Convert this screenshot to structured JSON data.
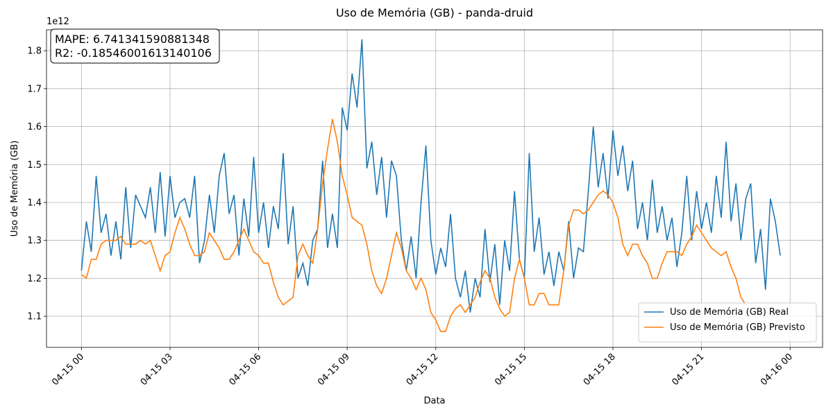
{
  "chart_data": {
    "type": "line",
    "title": "Uso de Memória (GB) - panda-druid",
    "xlabel": "Data",
    "ylabel": "Uso de Memória (GB)",
    "y_offset_label": "1e12",
    "annotations": [
      "MAPE: 6.741341590881348",
      "R2: -0.18546001613140106"
    ],
    "legend": "lower right",
    "grid": true,
    "xlim": [
      "04-14 22:49",
      "04-16 01:06"
    ],
    "ylim": [
      1018000000000.0,
      1855000000000.0
    ],
    "xticks": [
      {
        "value": "04-15 00:00",
        "label": "04-15 00"
      },
      {
        "value": "04-15 03:00",
        "label": "04-15 03"
      },
      {
        "value": "04-15 06:00",
        "label": "04-15 06"
      },
      {
        "value": "04-15 09:00",
        "label": "04-15 09"
      },
      {
        "value": "04-15 12:00",
        "label": "04-15 12"
      },
      {
        "value": "04-15 15:00",
        "label": "04-15 15"
      },
      {
        "value": "04-15 18:00",
        "label": "04-15 18"
      },
      {
        "value": "04-15 21:00",
        "label": "04-15 21"
      },
      {
        "value": "04-16 00:00",
        "label": "04-16 00"
      }
    ],
    "yticks": [
      {
        "value": 1100000000000.0,
        "label": "1.1"
      },
      {
        "value": 1200000000000.0,
        "label": "1.2"
      },
      {
        "value": 1300000000000.0,
        "label": "1.3"
      },
      {
        "value": 1400000000000.0,
        "label": "1.4"
      },
      {
        "value": 1500000000000.0,
        "label": "1.5"
      },
      {
        "value": 1600000000000.0,
        "label": "1.6"
      },
      {
        "value": 1700000000000.0,
        "label": "1.7"
      },
      {
        "value": 1800000000000.0,
        "label": "1.8"
      }
    ],
    "x": [
      "04-15 00:00",
      "04-15 00:10",
      "04-15 00:20",
      "04-15 00:30",
      "04-15 00:40",
      "04-15 00:50",
      "04-15 01:00",
      "04-15 01:10",
      "04-15 01:20",
      "04-15 01:30",
      "04-15 01:40",
      "04-15 01:50",
      "04-15 02:00",
      "04-15 02:10",
      "04-15 02:20",
      "04-15 02:30",
      "04-15 02:40",
      "04-15 02:50",
      "04-15 03:00",
      "04-15 03:10",
      "04-15 03:20",
      "04-15 03:30",
      "04-15 03:40",
      "04-15 03:50",
      "04-15 04:00",
      "04-15 04:10",
      "04-15 04:20",
      "04-15 04:30",
      "04-15 04:40",
      "04-15 04:50",
      "04-15 05:00",
      "04-15 05:10",
      "04-15 05:20",
      "04-15 05:30",
      "04-15 05:40",
      "04-15 05:50",
      "04-15 06:00",
      "04-15 06:10",
      "04-15 06:20",
      "04-15 06:30",
      "04-15 06:40",
      "04-15 06:50",
      "04-15 07:00",
      "04-15 07:10",
      "04-15 07:20",
      "04-15 07:30",
      "04-15 07:40",
      "04-15 07:50",
      "04-15 08:00",
      "04-15 08:10",
      "04-15 08:20",
      "04-15 08:30",
      "04-15 08:40",
      "04-15 08:50",
      "04-15 09:00",
      "04-15 09:10",
      "04-15 09:20",
      "04-15 09:30",
      "04-15 09:40",
      "04-15 09:50",
      "04-15 10:00",
      "04-15 10:10",
      "04-15 10:20",
      "04-15 10:30",
      "04-15 10:40",
      "04-15 10:50",
      "04-15 11:00",
      "04-15 11:10",
      "04-15 11:20",
      "04-15 11:30",
      "04-15 11:40",
      "04-15 11:50",
      "04-15 12:00",
      "04-15 12:10",
      "04-15 12:20",
      "04-15 12:30",
      "04-15 12:40",
      "04-15 12:50",
      "04-15 13:00",
      "04-15 13:10",
      "04-15 13:20",
      "04-15 13:30",
      "04-15 13:40",
      "04-15 13:50",
      "04-15 14:00",
      "04-15 14:10",
      "04-15 14:20",
      "04-15 14:30",
      "04-15 14:40",
      "04-15 14:50",
      "04-15 15:00",
      "04-15 15:10",
      "04-15 15:20",
      "04-15 15:30",
      "04-15 15:40",
      "04-15 15:50",
      "04-15 16:00",
      "04-15 16:10",
      "04-15 16:20",
      "04-15 16:30",
      "04-15 16:40",
      "04-15 16:50",
      "04-15 17:00",
      "04-15 17:10",
      "04-15 17:20",
      "04-15 17:30",
      "04-15 17:40",
      "04-15 17:50",
      "04-15 18:00",
      "04-15 18:10",
      "04-15 18:20",
      "04-15 18:30",
      "04-15 18:40",
      "04-15 18:50",
      "04-15 19:00",
      "04-15 19:10",
      "04-15 19:20",
      "04-15 19:30",
      "04-15 19:40",
      "04-15 19:50",
      "04-15 20:00",
      "04-15 20:10",
      "04-15 20:20",
      "04-15 20:30",
      "04-15 20:40",
      "04-15 20:50",
      "04-15 21:00",
      "04-15 21:10",
      "04-15 21:20",
      "04-15 21:30",
      "04-15 21:40",
      "04-15 21:50",
      "04-15 22:00",
      "04-15 22:10",
      "04-15 22:20",
      "04-15 22:30",
      "04-15 22:40",
      "04-15 22:50",
      "04-15 23:00",
      "04-15 23:10",
      "04-15 23:20",
      "04-15 23:30",
      "04-15 23:40"
    ],
    "series": [
      {
        "name": "Uso de Memória (GB) Real",
        "color": "#1f77b4",
        "values": [
          1220000000000.0,
          1350000000000.0,
          1270000000000.0,
          1470000000000.0,
          1320000000000.0,
          1370000000000.0,
          1260000000000.0,
          1350000000000.0,
          1250000000000.0,
          1440000000000.0,
          1280000000000.0,
          1420000000000.0,
          1390000000000.0,
          1360000000000.0,
          1440000000000.0,
          1320000000000.0,
          1480000000000.0,
          1310000000000.0,
          1470000000000.0,
          1360000000000.0,
          1400000000000.0,
          1410000000000.0,
          1360000000000.0,
          1470000000000.0,
          1240000000000.0,
          1300000000000.0,
          1420000000000.0,
          1320000000000.0,
          1470000000000.0,
          1530000000000.0,
          1370000000000.0,
          1420000000000.0,
          1260000000000.0,
          1410000000000.0,
          1310000000000.0,
          1520000000000.0,
          1320000000000.0,
          1400000000000.0,
          1280000000000.0,
          1390000000000.0,
          1330000000000.0,
          1530000000000.0,
          1290000000000.0,
          1390000000000.0,
          1200000000000.0,
          1240000000000.0,
          1180000000000.0,
          1300000000000.0,
          1330000000000.0,
          1510000000000.0,
          1280000000000.0,
          1370000000000.0,
          1280000000000.0,
          1650000000000.0,
          1590000000000.0,
          1740000000000.0,
          1650000000000.0,
          1830000000000.0,
          1490000000000.0,
          1560000000000.0,
          1420000000000.0,
          1520000000000.0,
          1360000000000.0,
          1510000000000.0,
          1470000000000.0,
          1300000000000.0,
          1220000000000.0,
          1310000000000.0,
          1200000000000.0,
          1400000000000.0,
          1550000000000.0,
          1300000000000.0,
          1210000000000.0,
          1280000000000.0,
          1230000000000.0,
          1370000000000.0,
          1200000000000.0,
          1150000000000.0,
          1220000000000.0,
          1110000000000.0,
          1200000000000.0,
          1150000000000.0,
          1330000000000.0,
          1190000000000.0,
          1290000000000.0,
          1130000000000.0,
          1300000000000.0,
          1220000000000.0,
          1430000000000.0,
          1250000000000.0,
          1200000000000.0,
          1530000000000.0,
          1270000000000.0,
          1360000000000.0,
          1210000000000.0,
          1270000000000.0,
          1180000000000.0,
          1270000000000.0,
          1220000000000.0,
          1350000000000.0,
          1200000000000.0,
          1280000000000.0,
          1270000000000.0,
          1430000000000.0,
          1600000000000.0,
          1440000000000.0,
          1530000000000.0,
          1410000000000.0,
          1590000000000.0,
          1470000000000.0,
          1550000000000.0,
          1430000000000.0,
          1510000000000.0,
          1330000000000.0,
          1400000000000.0,
          1300000000000.0,
          1460000000000.0,
          1320000000000.0,
          1390000000000.0,
          1300000000000.0,
          1360000000000.0,
          1230000000000.0,
          1320000000000.0,
          1470000000000.0,
          1300000000000.0,
          1430000000000.0,
          1330000000000.0,
          1400000000000.0,
          1320000000000.0,
          1470000000000.0,
          1360000000000.0,
          1560000000000.0,
          1350000000000.0,
          1450000000000.0,
          1300000000000.0,
          1410000000000.0,
          1450000000000.0,
          1240000000000.0,
          1330000000000.0,
          1170000000000.0,
          1410000000000.0,
          1350000000000.0,
          1260000000000.0
        ]
      },
      {
        "name": "Uso de Memória (GB) Previsto",
        "color": "#ff7f0e",
        "values": [
          1210000000000.0,
          1200000000000.0,
          1250000000000.0,
          1250000000000.0,
          1290000000000.0,
          1300000000000.0,
          1300000000000.0,
          1300000000000.0,
          1310000000000.0,
          1290000000000.0,
          1290000000000.0,
          1290000000000.0,
          1300000000000.0,
          1290000000000.0,
          1300000000000.0,
          1260000000000.0,
          1220000000000.0,
          1260000000000.0,
          1270000000000.0,
          1320000000000.0,
          1360000000000.0,
          1330000000000.0,
          1290000000000.0,
          1260000000000.0,
          1260000000000.0,
          1270000000000.0,
          1320000000000.0,
          1300000000000.0,
          1280000000000.0,
          1250000000000.0,
          1250000000000.0,
          1270000000000.0,
          1300000000000.0,
          1330000000000.0,
          1300000000000.0,
          1270000000000.0,
          1260000000000.0,
          1240000000000.0,
          1240000000000.0,
          1190000000000.0,
          1150000000000.0,
          1130000000000.0,
          1140000000000.0,
          1150000000000.0,
          1260000000000.0,
          1290000000000.0,
          1260000000000.0,
          1240000000000.0,
          1330000000000.0,
          1450000000000.0,
          1540000000000.0,
          1620000000000.0,
          1560000000000.0,
          1470000000000.0,
          1420000000000.0,
          1360000000000.0,
          1350000000000.0,
          1340000000000.0,
          1290000000000.0,
          1220000000000.0,
          1180000000000.0,
          1160000000000.0,
          1200000000000.0,
          1260000000000.0,
          1320000000000.0,
          1280000000000.0,
          1220000000000.0,
          1200000000000.0,
          1170000000000.0,
          1200000000000.0,
          1170000000000.0,
          1110000000000.0,
          1090000000000.0,
          1060000000000.0,
          1060000000000.0,
          1100000000000.0,
          1120000000000.0,
          1130000000000.0,
          1110000000000.0,
          1130000000000.0,
          1150000000000.0,
          1190000000000.0,
          1220000000000.0,
          1200000000000.0,
          1150000000000.0,
          1120000000000.0,
          1100000000000.0,
          1110000000000.0,
          1200000000000.0,
          1250000000000.0,
          1200000000000.0,
          1130000000000.0,
          1130000000000.0,
          1160000000000.0,
          1160000000000.0,
          1130000000000.0,
          1130000000000.0,
          1130000000000.0,
          1220000000000.0,
          1340000000000.0,
          1380000000000.0,
          1380000000000.0,
          1370000000000.0,
          1380000000000.0,
          1400000000000.0,
          1420000000000.0,
          1430000000000.0,
          1420000000000.0,
          1400000000000.0,
          1360000000000.0,
          1290000000000.0,
          1260000000000.0,
          1290000000000.0,
          1290000000000.0,
          1260000000000.0,
          1240000000000.0,
          1200000000000.0,
          1200000000000.0,
          1240000000000.0,
          1270000000000.0,
          1270000000000.0,
          1270000000000.0,
          1260000000000.0,
          1290000000000.0,
          1310000000000.0,
          1340000000000.0,
          1320000000000.0,
          1300000000000.0,
          1280000000000.0,
          1270000000000.0,
          1260000000000.0,
          1270000000000.0,
          1230000000000.0,
          1200000000000.0,
          1150000000000.0,
          1130000000000.0,
          null,
          null,
          null,
          null,
          null,
          null,
          null
        ]
      }
    ]
  }
}
